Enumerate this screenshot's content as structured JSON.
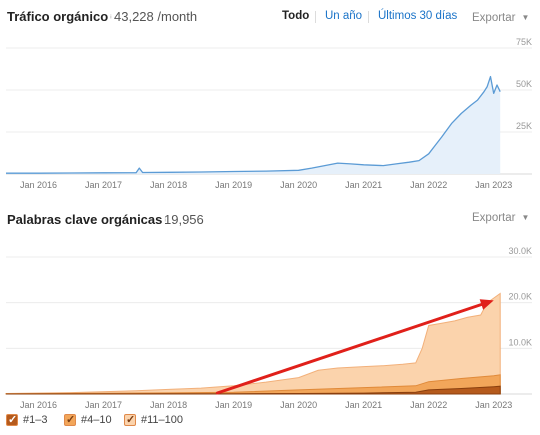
{
  "traffic": {
    "title": "Tráfico orgánico",
    "value": "43,228 /month",
    "tabs": [
      {
        "label": "Todo",
        "active": true
      },
      {
        "label": "Un año",
        "active": false
      },
      {
        "label": "Últimos 30 días",
        "active": false
      }
    ],
    "export_label": "Exportar"
  },
  "keywords": {
    "title": "Palabras clave orgánicas",
    "value": "19,956",
    "export_label": "Exportar"
  },
  "legend": [
    {
      "label": "#1–3",
      "checked": true,
      "color": "#b55a1c"
    },
    {
      "label": "#4–10",
      "checked": true,
      "color": "#f2a65a"
    },
    {
      "label": "#11–100",
      "checked": true,
      "color": "#fbd3ac"
    }
  ],
  "colors": {
    "traffic_line": "#5b9bd5",
    "traffic_fill": "#e6f0fa",
    "arrow": "#e0201a"
  },
  "chart_data": [
    {
      "type": "area",
      "title": "Tráfico orgánico",
      "x_ticks": [
        "Jan 2016",
        "Jan 2017",
        "Jan 2018",
        "Jan 2019",
        "Jan 2020",
        "Jan 2021",
        "Jan 2022",
        "Jan 2023"
      ],
      "y_ticks": [
        "25K",
        "50K",
        "75K"
      ],
      "ylim": [
        0,
        75000
      ],
      "xlim": [
        2015.5,
        2023.25
      ],
      "grid": true,
      "series": [
        {
          "x": [
            2015.5,
            2016.0,
            2016.5,
            2017.0,
            2017.5,
            2017.55,
            2017.6,
            2018.0,
            2018.5,
            2019.0,
            2019.5,
            2020.0,
            2020.2,
            2020.4,
            2020.6,
            2020.8,
            2021.0,
            2021.3,
            2021.5,
            2021.7,
            2021.85,
            2022.0,
            2022.1,
            2022.2,
            2022.35,
            2022.5,
            2022.65,
            2022.75,
            2022.85,
            2022.9,
            2022.95,
            2023.0,
            2023.05,
            2023.1
          ],
          "y": [
            500,
            500,
            600,
            700,
            800,
            3500,
            900,
            1000,
            1200,
            1500,
            1700,
            2200,
            3500,
            5000,
            6500,
            6000,
            5500,
            5000,
            6000,
            7000,
            8000,
            12000,
            17000,
            22000,
            30000,
            36000,
            41000,
            44000,
            49000,
            52000,
            58000,
            48000,
            53000,
            49000
          ]
        }
      ]
    },
    {
      "type": "area",
      "title": "Palabras clave orgánicas",
      "x_ticks": [
        "Jan 2016",
        "Jan 2017",
        "Jan 2018",
        "Jan 2019",
        "Jan 2020",
        "Jan 2021",
        "Jan 2022",
        "Jan 2023"
      ],
      "y_ticks": [
        "10.0K",
        "20.0K",
        "30.0K"
      ],
      "ylim": [
        0,
        30000
      ],
      "xlim": [
        2015.5,
        2023.25
      ],
      "grid": true,
      "series": [
        {
          "name": "#1–3",
          "x": [
            2015.5,
            2017.0,
            2018.0,
            2019.0,
            2020.0,
            2021.0,
            2021.8,
            2022.0,
            2022.5,
            2023.0,
            2023.1
          ],
          "y": [
            0,
            20,
            40,
            60,
            100,
            200,
            400,
            900,
            1200,
            1600,
            1700
          ]
        },
        {
          "name": "#4–10",
          "x": [
            2015.5,
            2017.0,
            2018.0,
            2019.0,
            2020.0,
            2021.0,
            2021.8,
            2022.0,
            2022.5,
            2023.0,
            2023.1
          ],
          "y": [
            50,
            150,
            250,
            400,
            900,
            1400,
            1800,
            2700,
            3400,
            4000,
            4200
          ]
        },
        {
          "name": "#11–100",
          "x": [
            2015.5,
            2016.5,
            2017.5,
            2018.0,
            2018.5,
            2019.0,
            2019.5,
            2020.0,
            2020.3,
            2020.6,
            2021.0,
            2021.3,
            2021.6,
            2021.8,
            2021.9,
            2022.0,
            2022.2,
            2022.4,
            2022.6,
            2022.8,
            2022.9,
            2023.0,
            2023.1
          ],
          "y": [
            100,
            300,
            700,
            1000,
            1300,
            1800,
            2600,
            3600,
            5200,
            5700,
            6000,
            6200,
            6500,
            6800,
            10000,
            15000,
            15500,
            16000,
            16800,
            17300,
            20000,
            21000,
            22000
          ]
        }
      ],
      "annotation": {
        "type": "arrow",
        "from": [
          2018.75,
          0
        ],
        "to": [
          2023.0,
          20500
        ],
        "color": "#e0201a"
      }
    }
  ]
}
